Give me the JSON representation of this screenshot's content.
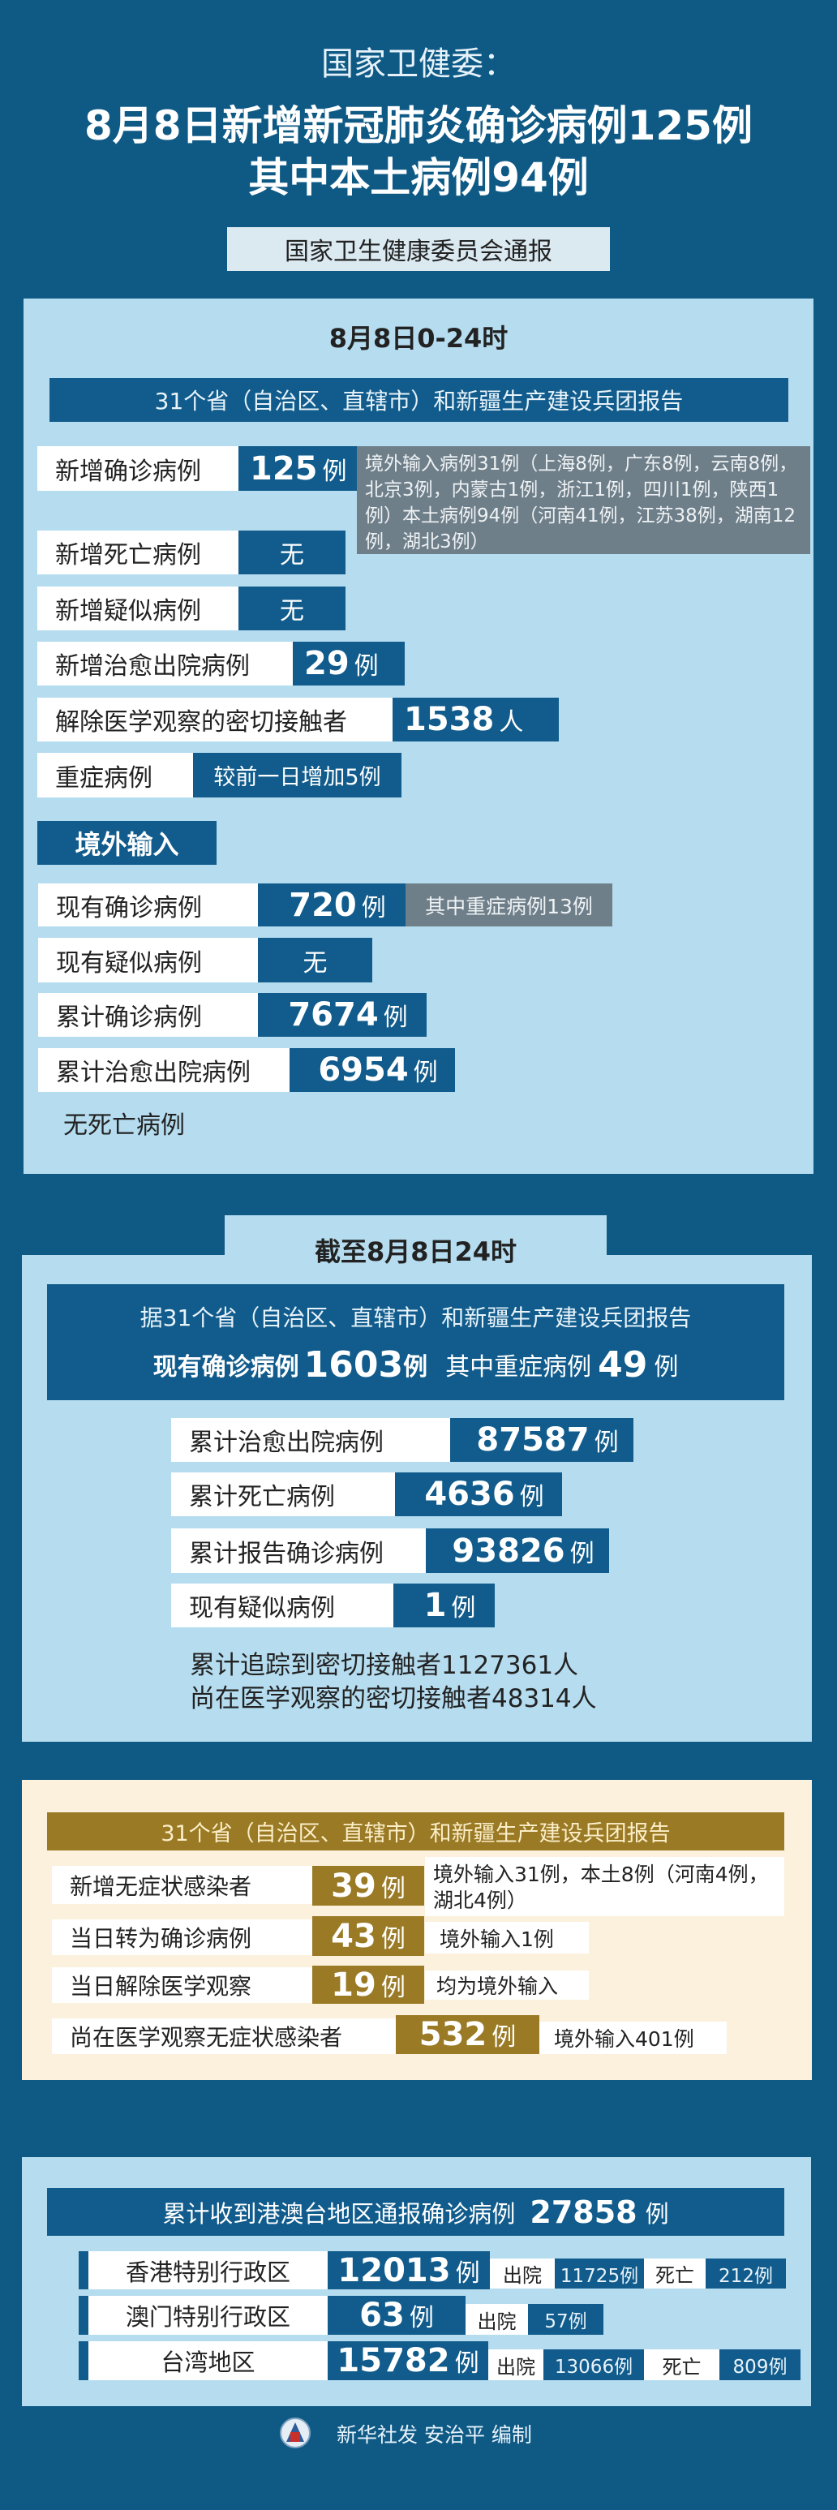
{
  "header": {
    "line1": "国家卫健委：",
    "line2": "8月8日新增新冠肺炎确诊病例125例",
    "line3": "其中本土病例94例",
    "source": "国家卫生健康委员会通报"
  },
  "colors": {
    "background": "#0f5a85",
    "panel": "#b5dcef",
    "dark": "#115c8c",
    "gray": "#6f7f8a",
    "cream": "#fbf1dc",
    "gold": "#9a7a25"
  },
  "daily": {
    "title": "8月8日0-24时",
    "report": "31个省（自治区、直辖市）和新疆生产建设兵团报告",
    "rows": [
      {
        "label": "新增确诊病例",
        "value": "125",
        "unit": "例",
        "note": "境外输入病例31例（上海8例，广东8例，云南8例，北京3例，内蒙古1例，浙江1例，四川1例，陕西1例）本土病例94例（河南41例，江苏38例，湖南12例，湖北3例）"
      },
      {
        "label": "新增死亡病例",
        "value": "无"
      },
      {
        "label": "新增疑似病例",
        "value": "无"
      },
      {
        "label": "新增治愈出院病例",
        "value": "29",
        "unit": "例"
      },
      {
        "label": "解除医学观察的密切接触者",
        "value": "1538",
        "unit": "人"
      },
      {
        "label": "重症病例",
        "value": "较前一日增加5例"
      }
    ],
    "imported_title": "境外输入",
    "imported": [
      {
        "label": "现有确诊病例",
        "value": "720",
        "unit": "例",
        "note": "其中重症病例13例"
      },
      {
        "label": "现有疑似病例",
        "value": "无"
      },
      {
        "label": "累计确诊病例",
        "value": "7674",
        "unit": "例"
      },
      {
        "label": "累计治愈出院病例",
        "value": "6954",
        "unit": "例"
      }
    ],
    "no_death": "无死亡病例"
  },
  "cumulative": {
    "title": "截至8月8日24时",
    "report": "据31个省（自治区、直辖市）和新疆生产建设兵团报告",
    "current_label": "现有确诊病例",
    "current_value": "1603",
    "unit": "例",
    "severe_label": "其中重症病例",
    "severe_value": "49",
    "rows": [
      {
        "label": "累计治愈出院病例",
        "value": "87587",
        "unit": "例"
      },
      {
        "label": "累计死亡病例",
        "value": "4636",
        "unit": "例"
      },
      {
        "label": "累计报告确诊病例",
        "value": "93826",
        "unit": "例"
      },
      {
        "label": "现有疑似病例",
        "value": "1",
        "unit": "例"
      }
    ],
    "contacts_total": "累计追踪到密切接触者1127361人",
    "contacts_observed": "尚在医学观察的密切接触者48314人"
  },
  "asymptomatic": {
    "report": "31个省（自治区、直辖市）和新疆生产建设兵团报告",
    "rows": [
      {
        "label": "新增无症状感染者",
        "value": "39",
        "unit": "例",
        "note": "境外输入31例，本土8例（河南4例，湖北4例）"
      },
      {
        "label": "当日转为确诊病例",
        "value": "43",
        "unit": "例",
        "note": "境外输入1例"
      },
      {
        "label": "当日解除医学观察",
        "value": "19",
        "unit": "例",
        "note": "均为境外输入"
      },
      {
        "label": "尚在医学观察无症状感染者",
        "value": "532",
        "unit": "例",
        "note": "境外输入401例"
      }
    ]
  },
  "hmt": {
    "title": "累计收到港澳台地区通报确诊病例",
    "total": "27858",
    "unit": "例",
    "discharged_label": "出院",
    "death_label": "死亡",
    "rows": [
      {
        "label": "香港特别行政区",
        "value": "12013",
        "discharged": "11725例",
        "deaths": "212例"
      },
      {
        "label": "澳门特别行政区",
        "value": "63",
        "discharged": "57例"
      },
      {
        "label": "台湾地区",
        "value": "15782",
        "discharged": "13066例",
        "deaths": "809例"
      }
    ]
  },
  "footer": {
    "logo": "新华社",
    "credit": "新华社发 安治平 编制"
  }
}
